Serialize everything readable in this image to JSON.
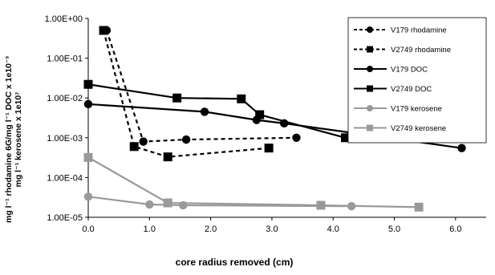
{
  "chart_data": {
    "type": "scatter",
    "title": "",
    "xlabel": "core radius removed (cm)",
    "ylabel": [
      "mg l⁻¹ rhodamine 6G/mg l⁻¹ DOC x 1e10⁻³",
      "mg l⁻¹ kerosene x 1e10⁷"
    ],
    "xlim": [
      0,
      6.5
    ],
    "ylim": [
      1e-05,
      1
    ],
    "y_scale": "log",
    "grid": false,
    "legend_position": "top-right",
    "x_ticks": [
      "0.0",
      "1.0",
      "2.0",
      "3.0",
      "4.0",
      "5.0",
      "6.0"
    ],
    "y_ticks": [
      "1.00E+00",
      "1.00E-01",
      "1.00E-02",
      "1.00E-03",
      "1.00E-04",
      "1.00E-05"
    ],
    "series": [
      {
        "name": "V179 rhodamine",
        "marker": "circle",
        "line": "dashed",
        "color": "#000000",
        "x": [
          0.3,
          0.9,
          1.6,
          3.4
        ],
        "y": [
          0.5,
          0.0008,
          0.0009,
          0.001
        ]
      },
      {
        "name": "V2749 rhodamine",
        "marker": "square",
        "line": "dashed",
        "color": "#000000",
        "x": [
          0.25,
          0.75,
          1.3,
          2.95
        ],
        "y": [
          0.5,
          0.0006,
          0.00033,
          0.00055
        ]
      },
      {
        "name": "V179 DOC",
        "marker": "circle",
        "line": "solid",
        "color": "#000000",
        "x": [
          0.0,
          1.9,
          2.75,
          3.2,
          6.1
        ],
        "y": [
          0.007,
          0.0045,
          0.0028,
          0.0023,
          0.00055
        ]
      },
      {
        "name": "V2749 DOC",
        "marker": "square",
        "line": "solid",
        "color": "#000000",
        "x": [
          0.0,
          1.45,
          2.5,
          2.8,
          4.2
        ],
        "y": [
          0.022,
          0.01,
          0.0095,
          0.0038,
          0.001
        ]
      },
      {
        "name": "V179 kerosene",
        "marker": "circle",
        "line": "solid",
        "color": "#999999",
        "x": [
          0.0,
          1.0,
          1.55,
          4.3
        ],
        "y": [
          3.3e-05,
          2.1e-05,
          2e-05,
          1.9e-05
        ]
      },
      {
        "name": "V2749 kerosene",
        "marker": "square",
        "line": "solid",
        "color": "#999999",
        "x": [
          0.0,
          1.3,
          3.8,
          5.4
        ],
        "y": [
          0.00032,
          2.3e-05,
          2e-05,
          1.8e-05
        ]
      }
    ]
  }
}
